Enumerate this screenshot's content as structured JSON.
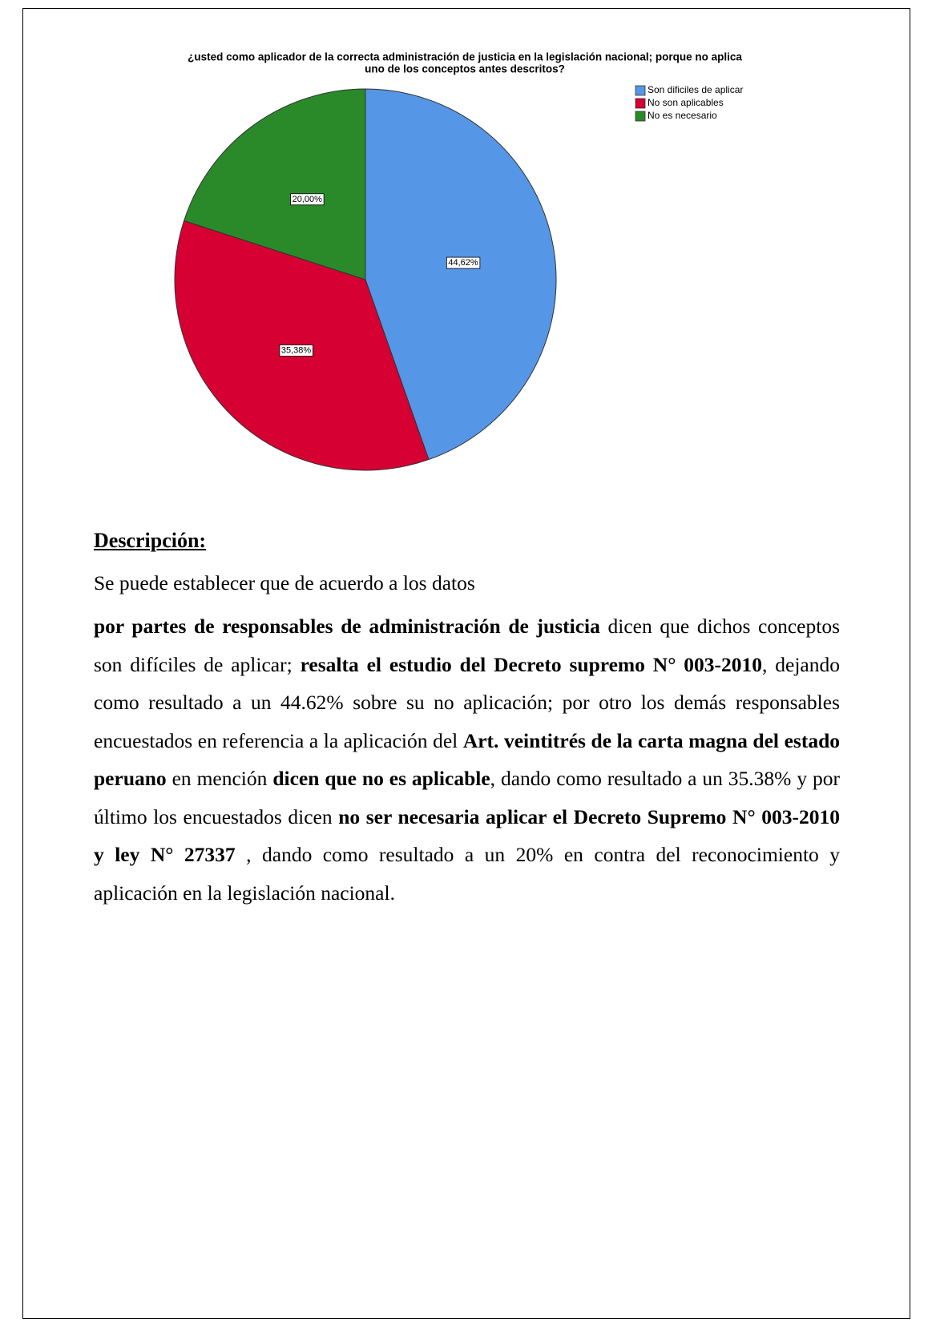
{
  "chart_data": {
    "type": "pie",
    "title": "¿usted como aplicador de la correcta administración de justicia en la legislación nacional; porque no aplica",
    "subtitle": "uno de los conceptos antes descritos?",
    "categories": [
      "Son dificiles de aplicar",
      "No son aplicables",
      "No es necesario"
    ],
    "values": [
      44.62,
      35.38,
      20.0
    ],
    "value_labels": [
      "44,62%",
      "35,38%",
      "20,00%"
    ],
    "colors": [
      "#5596e6",
      "#d60032",
      "#2a8a2a"
    ],
    "legend": "top-right"
  },
  "description": {
    "heading": "Descripción:",
    "line1": "Se puede establecer que de acuerdo a los datos",
    "runs": [
      {
        "text": "por partes de responsables de administración de justicia",
        "bold": true
      },
      {
        "text": " dicen que dichos conceptos son difíciles de aplicar; ",
        "bold": false
      },
      {
        "text": "resalta el estudio del Decreto supremo N° 003-2010",
        "bold": true
      },
      {
        "text": ", dejando como resultado a un 44.62% sobre su no aplicación; por otro los demás  responsables encuestados en referencia a la aplicación del ",
        "bold": false
      },
      {
        "text": "Art. veintitrés de la carta magna del estado peruano",
        "bold": true
      },
      {
        "text": " en mención ",
        "bold": false
      },
      {
        "text": "dicen que no es aplicable",
        "bold": true
      },
      {
        "text": ", dando como resultado a un 35.38% y por último los encuestados dicen ",
        "bold": false
      },
      {
        "text": "no ser necesaria aplicar el Decreto Supremo N° 003-2010 y ley N° 27337",
        "bold": true
      },
      {
        "text": " , dando como resultado a un 20% en contra del reconocimiento y aplicación en la legislación nacional.",
        "bold": false
      }
    ]
  }
}
